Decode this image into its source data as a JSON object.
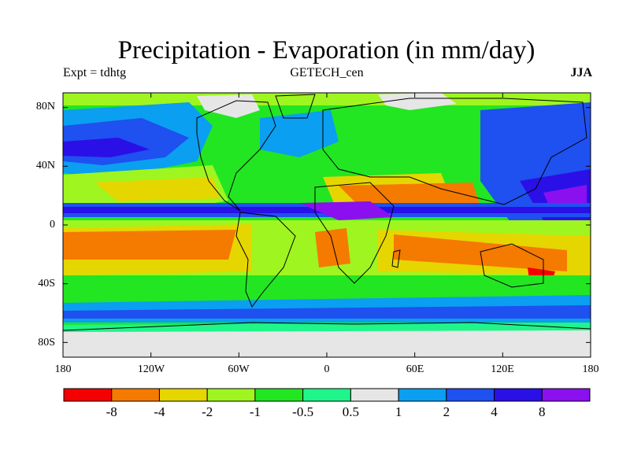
{
  "header": {
    "title": "Precipitation - Evaporation (in mm/day)",
    "expt": "Expt = tdhtg",
    "dataset": "GETECH_cen",
    "season": "JJA"
  },
  "map": {
    "projection": "cylindrical equidistant",
    "lon_range": [
      -180,
      180
    ],
    "lat_range": [
      -90,
      90
    ],
    "y_ticks": [
      {
        "lat": 80,
        "label": "80N"
      },
      {
        "lat": 40,
        "label": "40N"
      },
      {
        "lat": 0,
        "label": "0"
      },
      {
        "lat": -40,
        "label": "40S"
      },
      {
        "lat": -80,
        "label": "80S"
      }
    ],
    "x_ticks": [
      {
        "lon": -180,
        "label": "180"
      },
      {
        "lon": -120,
        "label": "120W"
      },
      {
        "lon": -60,
        "label": "60W"
      },
      {
        "lon": 0,
        "label": "0"
      },
      {
        "lon": 60,
        "label": "60E"
      },
      {
        "lon": 120,
        "label": "120E"
      },
      {
        "lon": 180,
        "label": "180"
      }
    ]
  },
  "colorbar": {
    "colors": [
      "#f50000",
      "#f57a00",
      "#e6d600",
      "#9ff51f",
      "#22e622",
      "#1ff58a",
      "#e6e6e6",
      "#0a9ff0",
      "#1f50f0",
      "#2a10e6",
      "#8a10f0"
    ],
    "labels": [
      "-8",
      "-4",
      "-2",
      "-1",
      "-0.5",
      "0.5",
      "1",
      "2",
      "4",
      "8"
    ]
  }
}
